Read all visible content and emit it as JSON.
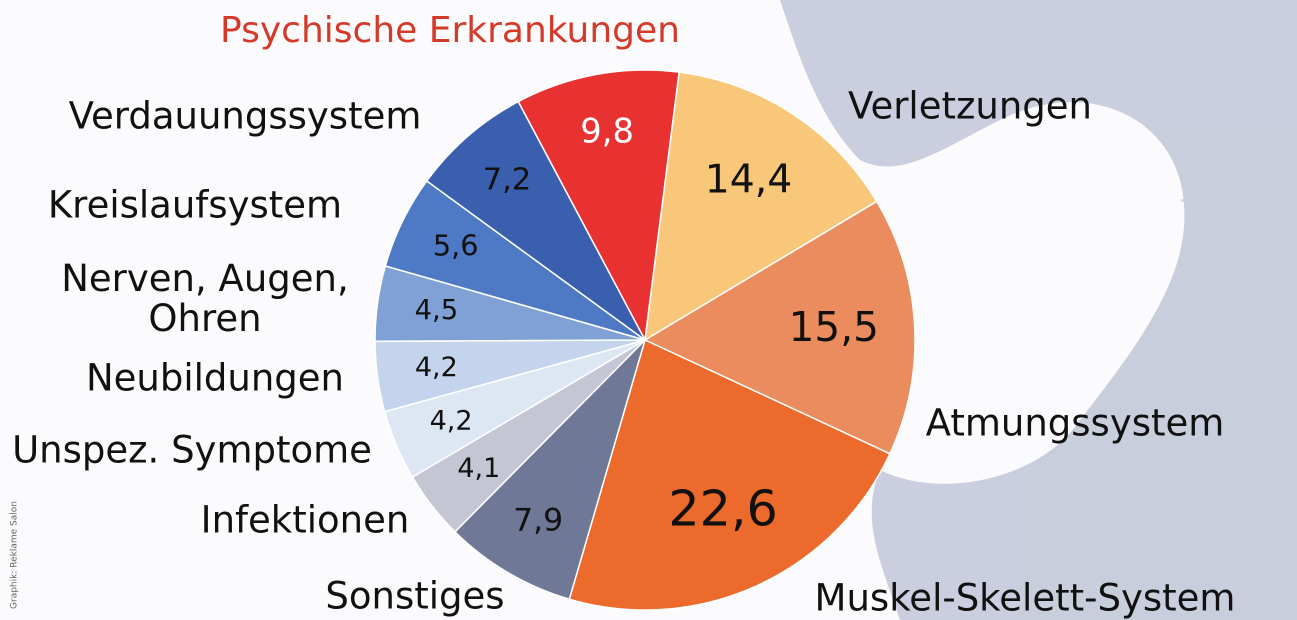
{
  "chart_data": {
    "type": "pie",
    "categories": [
      "Psychische Erkrankungen",
      "Verletzungen",
      "Atmungssystem",
      "Muskel-Skelett-System",
      "Sonstiges",
      "Infektionen",
      "Unspez. Symptome",
      "Neubildungen",
      "Nerven, Augen, Ohren",
      "Kreislaufsystem",
      "Verdauungssystem"
    ],
    "values": [
      9.8,
      14.4,
      15.5,
      22.6,
      7.9,
      4.1,
      4.2,
      4.2,
      4.5,
      5.6,
      7.2
    ],
    "value_labels": [
      "9,8",
      "14,4",
      "15,5",
      "22,6",
      "7,9",
      "4,1",
      "4,2",
      "4,2",
      "4,5",
      "5,6",
      "7,2"
    ],
    "colors": [
      "#e83232",
      "#f8c77a",
      "#eb8c5e",
      "#ec6a2c",
      "#6f7896",
      "#c4c7d3",
      "#dde7f3",
      "#c4d4ec",
      "#7fa1d6",
      "#4e79c4",
      "#3a5fae"
    ],
    "credit": "Graphik: Reklame Salon"
  }
}
